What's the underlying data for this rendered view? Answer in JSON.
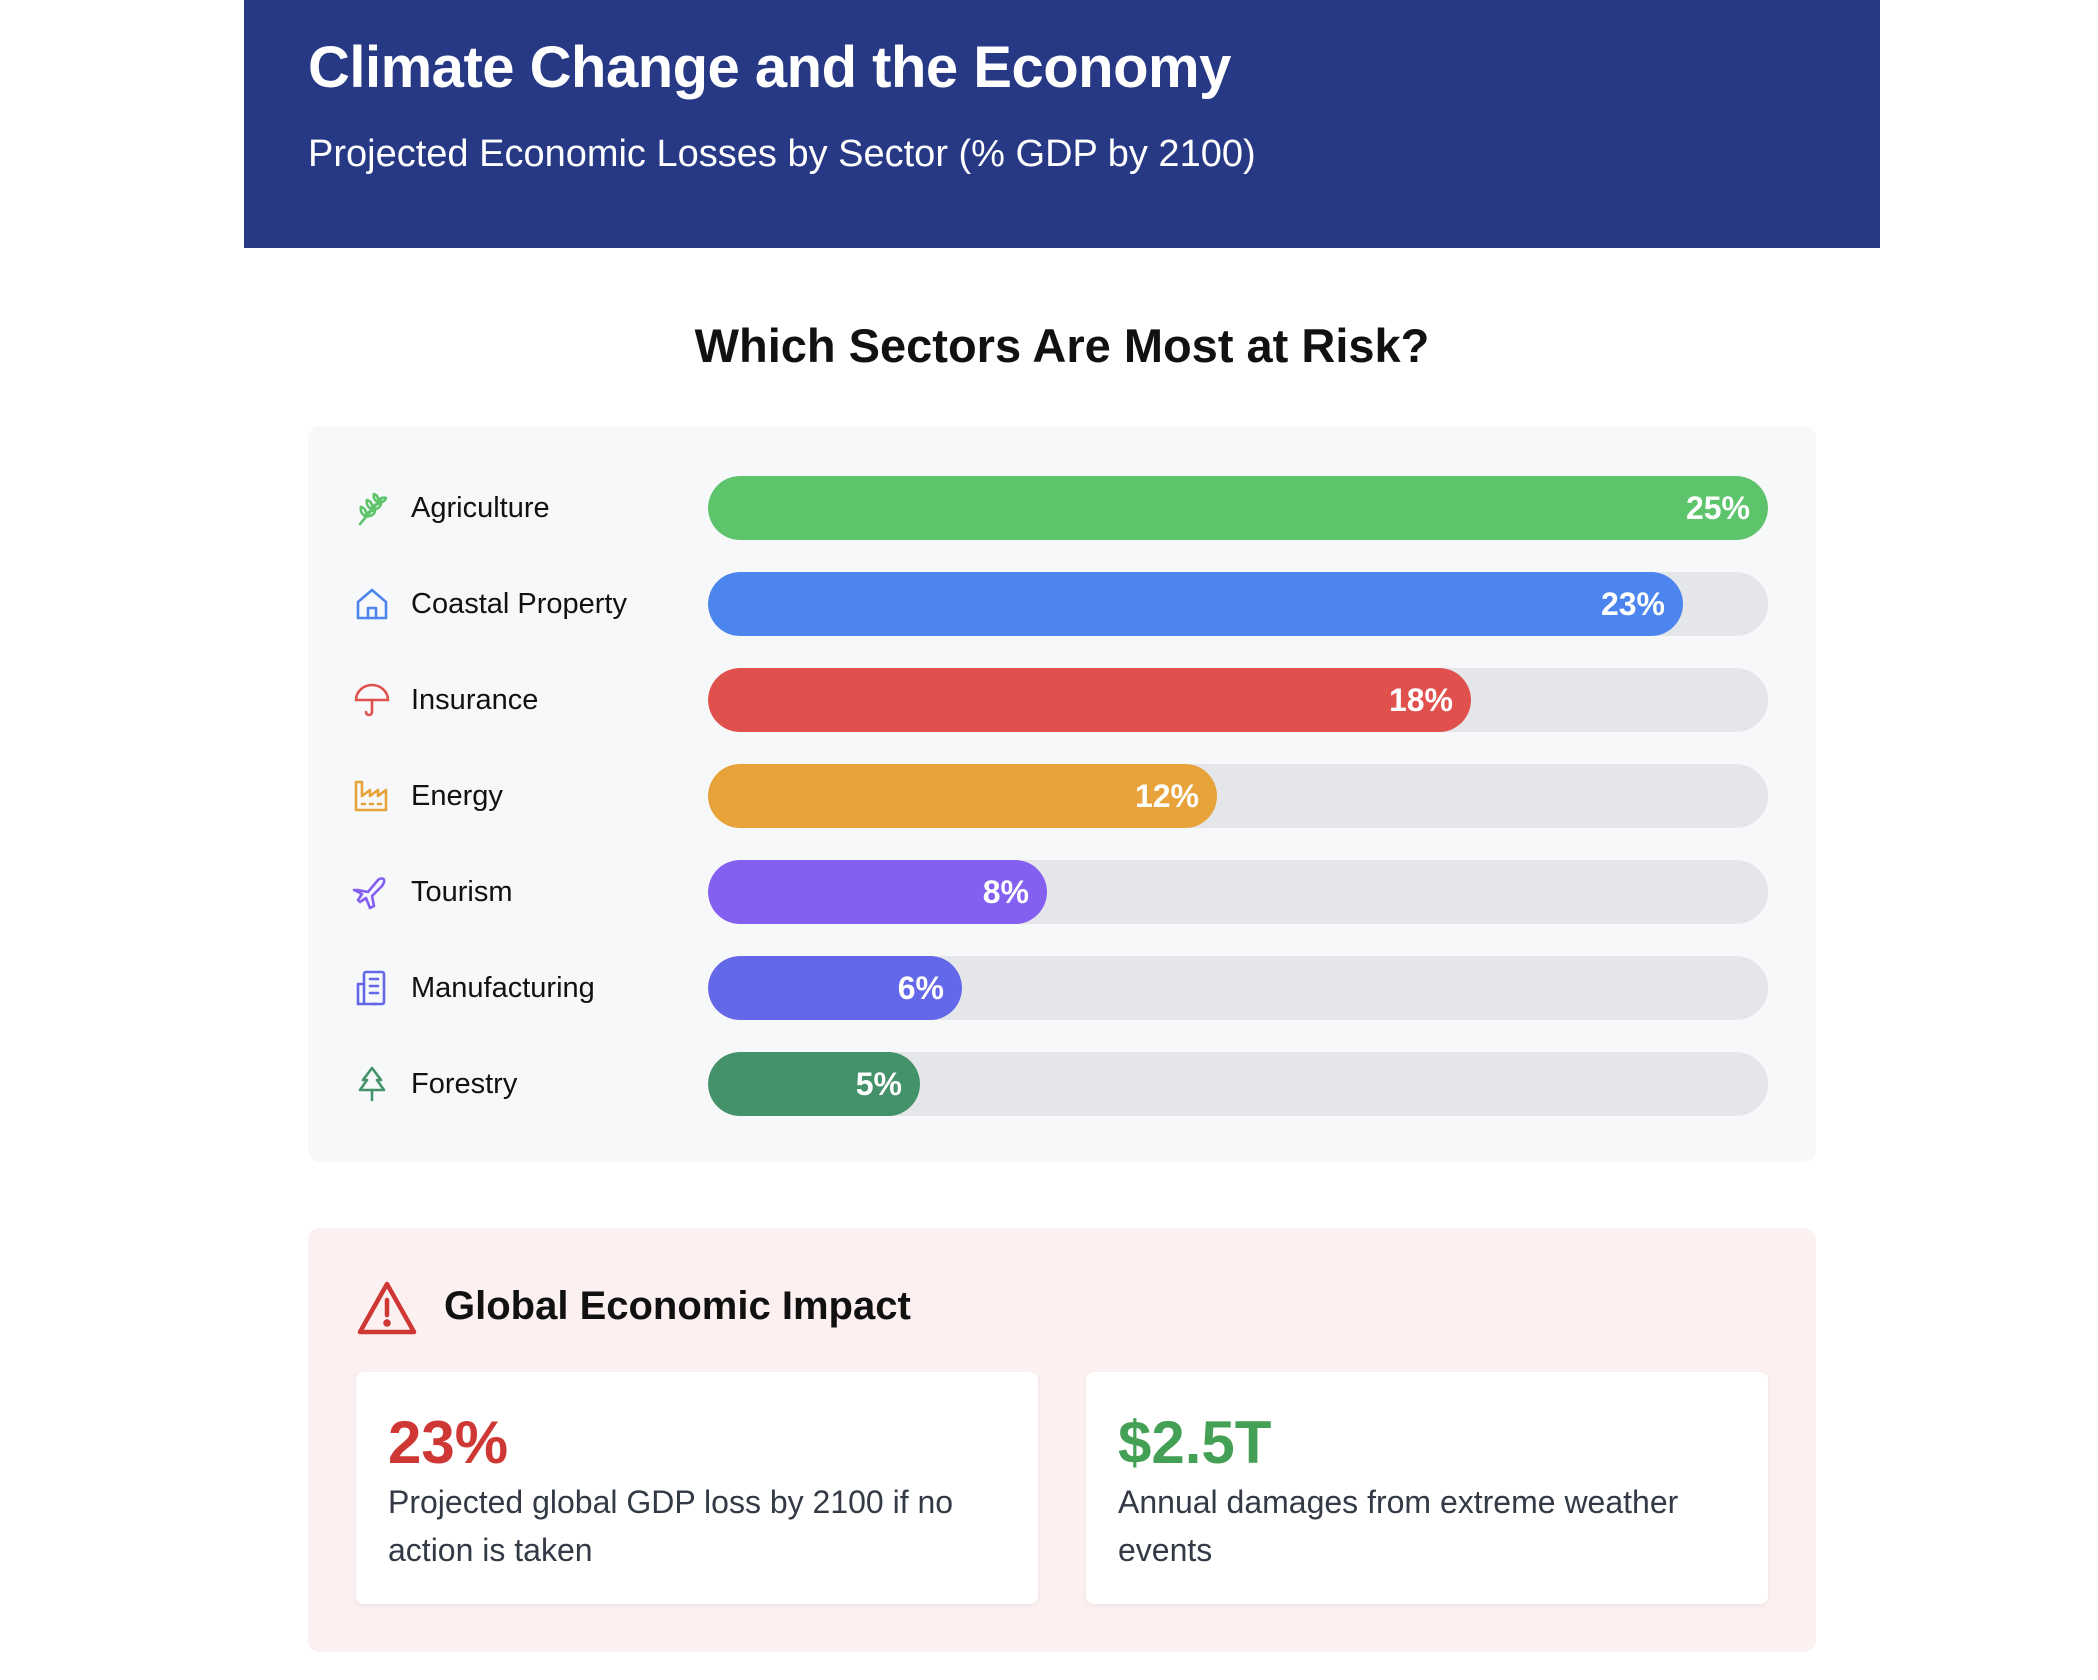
{
  "header": {
    "title": "Climate Change and the Economy",
    "subtitle": "Projected Economic Losses by Sector (% GDP by 2100)"
  },
  "chart_section_title": "Which Sectors Are Most at Risk?",
  "chart_data": {
    "type": "bar",
    "orientation": "horizontal",
    "categories": [
      "Agriculture",
      "Coastal Property",
      "Insurance",
      "Energy",
      "Tourism",
      "Manufacturing",
      "Forestry"
    ],
    "values": [
      25,
      23,
      18,
      12,
      8,
      6,
      5
    ],
    "value_labels": [
      "25%",
      "23%",
      "18%",
      "12%",
      "8%",
      "6%",
      "5%"
    ],
    "xlim": [
      0,
      25
    ],
    "bar_colors": [
      "#5dc46b",
      "#4c85ed",
      "#e0514e",
      "#e8a23a",
      "#855ff0",
      "#6368e8",
      "#43926a"
    ],
    "icons": [
      "wheat-icon",
      "house-icon",
      "umbrella-icon",
      "factory-icon",
      "plane-icon",
      "building-icon",
      "tree-icon"
    ],
    "track_color": "#e5e6e9",
    "grid": false
  },
  "impact": {
    "title": "Global Economic Impact",
    "icon": "warning-icon",
    "stats": [
      {
        "value": "23%",
        "description": "Projected global GDP loss by 2100 if no action is taken",
        "color": "#cf3734"
      },
      {
        "value": "$2.5T",
        "description": "Annual damages from extreme weather events",
        "color": "#44a054"
      }
    ]
  }
}
